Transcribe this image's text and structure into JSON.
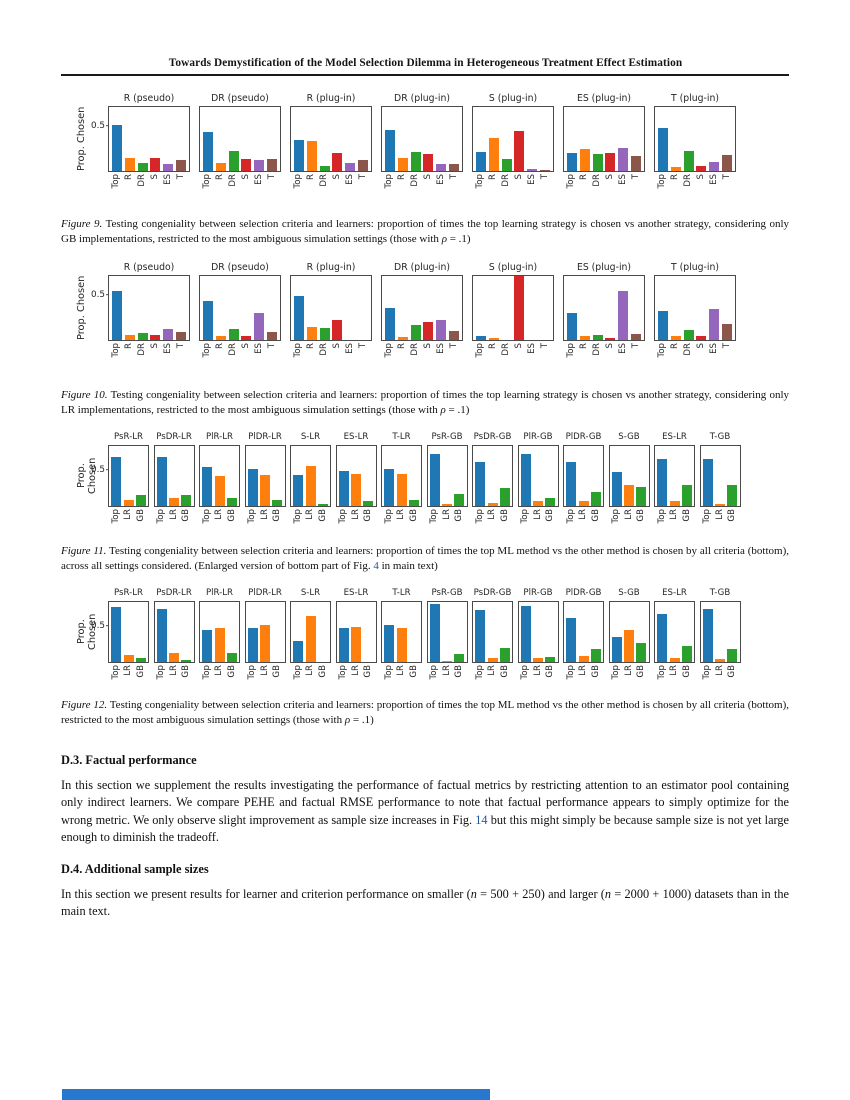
{
  "header": {
    "title": "Towards Demystification of the Model Selection Dilemma in Heterogeneous Treatment Effect Estimation"
  },
  "captions": {
    "fig9": {
      "label": "Figure 9.",
      "body": "Testing congeniality between selection criteria and learners: proportion of times the top learning strategy is chosen vs another strategy, considering only GB implementations, restricted to the most ambiguous simulation settings (those with ",
      "rho": "ρ",
      "tail": " = .1)"
    },
    "fig10": {
      "label": "Figure 10.",
      "body": "Testing congeniality between selection criteria and learners: proportion of times the top learning strategy is chosen vs another strategy, considering only LR implementations, restricted to the most ambiguous simulation settings (those with ",
      "rho": "ρ",
      "tail": " = .1)"
    },
    "fig11": {
      "label": "Figure 11.",
      "body": "Testing congeniality between selection criteria and learners: proportion of times the top ML method vs the other method is chosen by all criteria (bottom), across all settings considered. (Enlarged version of bottom part of Fig. ",
      "link": "4",
      "tail": " in main text)"
    },
    "fig12": {
      "label": "Figure 12.",
      "body": "Testing congeniality between selection criteria and learners: proportion of times the top ML method vs the other method is chosen by all criteria (bottom), restricted to the most ambiguous simulation settings (those with ",
      "rho": "ρ",
      "tail": " = .1)"
    }
  },
  "sections": {
    "d3": {
      "heading": "D.3. Factual performance",
      "p1": "In this section we supplement the results investigating the performance of factual metrics by restricting attention to an estimator pool containing only indirect learners. We compare PEHE and factual RMSE performance to note that factual performance appears to simply optimize for the wrong metric. We only observe slight improvement as sample size increases in Fig. ",
      "link": "14",
      "p2": " but this might simply be because sample size is not yet large enough to diminish the tradeoff."
    },
    "d4": {
      "heading": "D.4. Additional sample sizes",
      "p1": "In this section we present results for learner and criterion performance on smaller (",
      "n1": "n",
      "p2": " = 500 + 250) and larger (",
      "n2": "n",
      "p3": " = 2000 + 1000) datasets than in the main text."
    }
  },
  "artifact": {
    "color": "#2878cf"
  },
  "chart_data": [
    {
      "type": "bar",
      "figure": "Figure 9",
      "title": "",
      "ylabel": "Prop. Chosen",
      "ytick": "0.5",
      "ylim": [
        0,
        0.72
      ],
      "grid": false,
      "legend": "none",
      "categories": [
        "Top",
        "R",
        "DR",
        "S",
        "ES",
        "T"
      ],
      "bar_colors": [
        "#1f77b4",
        "#ff7f0e",
        "#2ca02c",
        "#d62728",
        "#9467bd",
        "#8c564b"
      ],
      "subplots": [
        {
          "title": "R (pseudo)",
          "values": [
            0.52,
            0.15,
            0.09,
            0.15,
            0.08,
            0.12
          ]
        },
        {
          "title": "DR (pseudo)",
          "values": [
            0.44,
            0.09,
            0.22,
            0.13,
            0.12,
            0.13
          ]
        },
        {
          "title": "R (plug-in)",
          "values": [
            0.35,
            0.34,
            0.06,
            0.2,
            0.09,
            0.12
          ]
        },
        {
          "title": "DR (plug-in)",
          "values": [
            0.46,
            0.15,
            0.21,
            0.19,
            0.08,
            0.08
          ]
        },
        {
          "title": "S (plug-in)",
          "values": [
            0.21,
            0.37,
            0.13,
            0.45,
            0.02,
            0.01
          ]
        },
        {
          "title": "ES (plug-in)",
          "values": [
            0.2,
            0.25,
            0.19,
            0.2,
            0.26,
            0.17
          ]
        },
        {
          "title": "T (plug-in)",
          "values": [
            0.48,
            0.04,
            0.22,
            0.06,
            0.1,
            0.18
          ]
        }
      ]
    },
    {
      "type": "bar",
      "figure": "Figure 10",
      "title": "",
      "ylabel": "Prop. Chosen",
      "ytick": "0.5",
      "ylim": [
        0,
        0.72
      ],
      "grid": false,
      "legend": "none",
      "categories": [
        "Top",
        "R",
        "DR",
        "S",
        "ES",
        "T"
      ],
      "bar_colors": [
        "#1f77b4",
        "#ff7f0e",
        "#2ca02c",
        "#d62728",
        "#9467bd",
        "#8c564b"
      ],
      "subplots": [
        {
          "title": "R (pseudo)",
          "values": [
            0.55,
            0.06,
            0.08,
            0.06,
            0.12,
            0.09
          ]
        },
        {
          "title": "DR (pseudo)",
          "values": [
            0.44,
            0.04,
            0.12,
            0.05,
            0.3,
            0.09
          ]
        },
        {
          "title": "R (plug-in)",
          "values": [
            0.49,
            0.15,
            0.13,
            0.22,
            0.0,
            0.0
          ]
        },
        {
          "title": "DR (plug-in)",
          "values": [
            0.36,
            0.03,
            0.17,
            0.2,
            0.22,
            0.1
          ]
        },
        {
          "title": "S (plug-in)",
          "values": [
            0.04,
            0.02,
            0.0,
            0.72,
            0.0,
            0.0
          ]
        },
        {
          "title": "ES (plug-in)",
          "values": [
            0.3,
            0.04,
            0.06,
            0.02,
            0.55,
            0.07
          ]
        },
        {
          "title": "T (plug-in)",
          "values": [
            0.33,
            0.04,
            0.11,
            0.04,
            0.35,
            0.18
          ]
        }
      ]
    },
    {
      "type": "bar",
      "figure": "Figure 11",
      "title": "",
      "ylabel": "Prop. Chosen",
      "ytick": "0.5",
      "ylim": [
        0,
        0.85
      ],
      "grid": false,
      "legend": "none",
      "categories": [
        "Top",
        "LR",
        "GB"
      ],
      "bar_colors": [
        "#1f77b4",
        "#ff7f0e",
        "#2ca02c"
      ],
      "subplots": [
        {
          "title": "PsR-LR",
          "values": [
            0.7,
            0.08,
            0.15
          ]
        },
        {
          "title": "PsDR-LR",
          "values": [
            0.7,
            0.12,
            0.15
          ]
        },
        {
          "title": "PlR-LR",
          "values": [
            0.55,
            0.42,
            0.11
          ]
        },
        {
          "title": "PlDR-LR",
          "values": [
            0.53,
            0.44,
            0.08
          ]
        },
        {
          "title": "S-LR",
          "values": [
            0.44,
            0.57,
            0.03
          ]
        },
        {
          "title": "ES-LR",
          "values": [
            0.5,
            0.46,
            0.07
          ]
        },
        {
          "title": "T-LR",
          "values": [
            0.52,
            0.45,
            0.09
          ]
        },
        {
          "title": "PsR-GB",
          "values": [
            0.73,
            0.03,
            0.17
          ]
        },
        {
          "title": "PsDR-GB",
          "values": [
            0.63,
            0.04,
            0.26
          ]
        },
        {
          "title": "PlR-GB",
          "values": [
            0.73,
            0.07,
            0.12
          ]
        },
        {
          "title": "PlDR-GB",
          "values": [
            0.62,
            0.07,
            0.2
          ]
        },
        {
          "title": "S-GB",
          "values": [
            0.48,
            0.3,
            0.27
          ]
        },
        {
          "title": "ES-LR",
          "values": [
            0.66,
            0.07,
            0.3
          ]
        },
        {
          "title": "T-GB",
          "values": [
            0.67,
            0.03,
            0.3
          ]
        }
      ]
    },
    {
      "type": "bar",
      "figure": "Figure 12",
      "title": "",
      "ylabel": "Prop. Chosen",
      "ytick": "0.5",
      "ylim": [
        0,
        0.85
      ],
      "grid": false,
      "legend": "none",
      "categories": [
        "Top",
        "LR",
        "GB"
      ],
      "bar_colors": [
        "#1f77b4",
        "#ff7f0e",
        "#2ca02c"
      ],
      "subplots": [
        {
          "title": "PsR-LR",
          "values": [
            0.78,
            0.1,
            0.05
          ]
        },
        {
          "title": "PsDR-LR",
          "values": [
            0.75,
            0.13,
            0.03
          ]
        },
        {
          "title": "PlR-LR",
          "values": [
            0.46,
            0.48,
            0.13
          ]
        },
        {
          "title": "PlDR-LR",
          "values": [
            0.48,
            0.53,
            0.0
          ]
        },
        {
          "title": "S-LR",
          "values": [
            0.3,
            0.65,
            0.0
          ]
        },
        {
          "title": "ES-LR",
          "values": [
            0.48,
            0.5,
            0.0
          ]
        },
        {
          "title": "T-LR",
          "values": [
            0.52,
            0.48,
            0.0
          ]
        },
        {
          "title": "PsR-GB",
          "values": [
            0.82,
            0.02,
            0.12
          ]
        },
        {
          "title": "PsDR-GB",
          "values": [
            0.73,
            0.05,
            0.2
          ]
        },
        {
          "title": "PlR-GB",
          "values": [
            0.8,
            0.06,
            0.07
          ]
        },
        {
          "title": "PlDR-GB",
          "values": [
            0.63,
            0.08,
            0.18
          ]
        },
        {
          "title": "S-GB",
          "values": [
            0.35,
            0.45,
            0.27
          ]
        },
        {
          "title": "ES-LR",
          "values": [
            0.68,
            0.06,
            0.22
          ]
        },
        {
          "title": "T-GB",
          "values": [
            0.75,
            0.04,
            0.18
          ]
        }
      ]
    }
  ]
}
